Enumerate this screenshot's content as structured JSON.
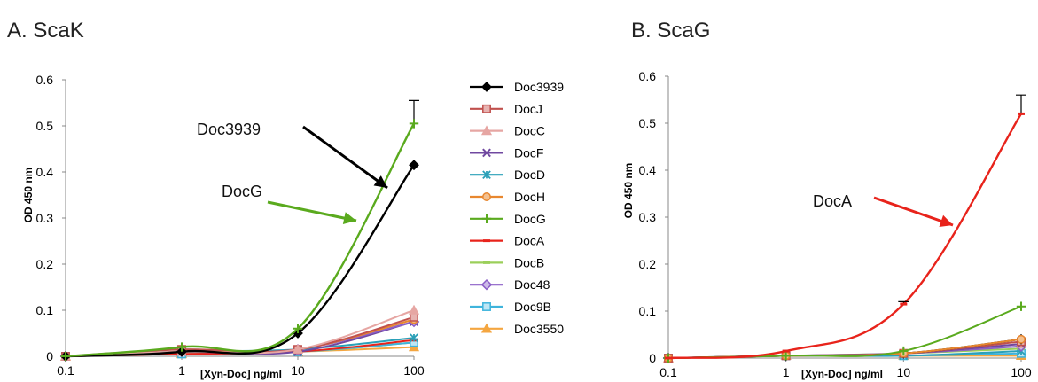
{
  "colors": {
    "Doc3939": "#000000",
    "DocJ": "#c0504d",
    "DocC": "#e6a6a3",
    "DocF": "#7048a0",
    "DocD": "#2aa0b8",
    "DocH": "#e8872f",
    "DocG": "#5aaa1e",
    "DocA": "#e8231b",
    "DocB": "#9bcf5a",
    "Doc48": "#8b5fc7",
    "Doc9B": "#3fb4dc",
    "Doc3550": "#f4a640"
  },
  "chart_data": [
    {
      "type": "line",
      "title": "A.  ScaK",
      "xlabel": "[Xyn-Doc] ng/ml",
      "ylabel": "OD 450 nm",
      "x_scale": "log",
      "x": [
        0.1,
        1,
        10,
        100
      ],
      "x_ticks": [
        "0.1",
        "1",
        "10",
        "100"
      ],
      "ylim": [
        0,
        0.6
      ],
      "y_ticks": [
        "0",
        "0.1",
        "0.2",
        "0.3",
        "0.4",
        "0.5",
        "0.6"
      ],
      "grid": false,
      "legend_position": "right",
      "series": [
        {
          "name": "Doc3939",
          "marker": "diamond",
          "values": [
            0,
            0.01,
            0.05,
            0.415
          ]
        },
        {
          "name": "DocJ",
          "marker": "square",
          "values": [
            0,
            0.015,
            0.015,
            0.085
          ]
        },
        {
          "name": "DocC",
          "marker": "triangle",
          "values": [
            0,
            0.01,
            0.015,
            0.1
          ]
        },
        {
          "name": "DocF",
          "marker": "x",
          "values": [
            0,
            0.01,
            0.01,
            0.075
          ]
        },
        {
          "name": "DocD",
          "marker": "asterisk",
          "values": [
            0,
            0.01,
            0.015,
            0.04
          ]
        },
        {
          "name": "DocH",
          "marker": "circle",
          "values": [
            0,
            0.01,
            0.015,
            0.08
          ]
        },
        {
          "name": "DocG",
          "marker": "plus",
          "values": [
            0,
            0.02,
            0.06,
            0.505
          ],
          "error": [
            0,
            0,
            0,
            0.05
          ]
        },
        {
          "name": "DocA",
          "marker": "dash",
          "values": [
            0,
            0.005,
            0.01,
            0.035
          ]
        },
        {
          "name": "DocB",
          "marker": "dash",
          "values": [
            0,
            0.01,
            0.01,
            0.03
          ]
        },
        {
          "name": "Doc48",
          "marker": "diamond-open",
          "values": [
            0,
            0.01,
            0.015,
            0.075
          ]
        },
        {
          "name": "Doc9B",
          "marker": "square-open",
          "values": [
            0,
            0.005,
            0.01,
            0.03
          ]
        },
        {
          "name": "Doc3550",
          "marker": "triangle",
          "values": [
            0,
            0.005,
            0.01,
            0.02
          ]
        }
      ],
      "annotations": [
        {
          "text": "Doc3939",
          "series": "Doc3939"
        },
        {
          "text": "DocG",
          "series": "DocG"
        }
      ]
    },
    {
      "type": "line",
      "title": "B.  ScaG",
      "xlabel": "[Xyn-Doc] ng/ml",
      "ylabel": "OD 450 nm",
      "x_scale": "log",
      "x": [
        0.1,
        1,
        10,
        100
      ],
      "x_ticks": [
        "0.1",
        "1",
        "10",
        "100"
      ],
      "ylim": [
        0,
        0.6
      ],
      "y_ticks": [
        "0",
        "0.1",
        "0.2",
        "0.3",
        "0.4",
        "0.5",
        "0.6"
      ],
      "grid": false,
      "series": [
        {
          "name": "Doc3939",
          "marker": "diamond",
          "values": [
            0,
            0.005,
            0.01,
            0.04
          ]
        },
        {
          "name": "DocJ",
          "marker": "square",
          "values": [
            0,
            0.005,
            0.01,
            0.035
          ]
        },
        {
          "name": "DocC",
          "marker": "triangle",
          "values": [
            0,
            0.005,
            0.01,
            0.03
          ]
        },
        {
          "name": "DocF",
          "marker": "x",
          "values": [
            0,
            0.005,
            0.01,
            0.03
          ]
        },
        {
          "name": "DocD",
          "marker": "asterisk",
          "values": [
            0,
            0.005,
            0.005,
            0.015
          ]
        },
        {
          "name": "DocH",
          "marker": "circle",
          "values": [
            0,
            0.005,
            0.01,
            0.04
          ]
        },
        {
          "name": "DocG",
          "marker": "plus",
          "values": [
            0,
            0.005,
            0.015,
            0.11
          ]
        },
        {
          "name": "DocA",
          "marker": "dash",
          "values": [
            0,
            0.015,
            0.115,
            0.52
          ],
          "error": [
            0,
            0,
            0.005,
            0.04
          ]
        },
        {
          "name": "DocB",
          "marker": "dash",
          "values": [
            0,
            0.005,
            0.01,
            0.02
          ]
        },
        {
          "name": "Doc48",
          "marker": "diamond-open",
          "values": [
            0,
            0.005,
            0.01,
            0.025
          ]
        },
        {
          "name": "Doc9B",
          "marker": "square-open",
          "values": [
            0,
            0.005,
            0.005,
            0.01
          ]
        },
        {
          "name": "Doc3550",
          "marker": "triangle",
          "values": [
            0,
            0.005,
            0.005,
            0.005
          ]
        }
      ],
      "annotations": [
        {
          "text": "DocA",
          "series": "DocA"
        }
      ]
    }
  ]
}
